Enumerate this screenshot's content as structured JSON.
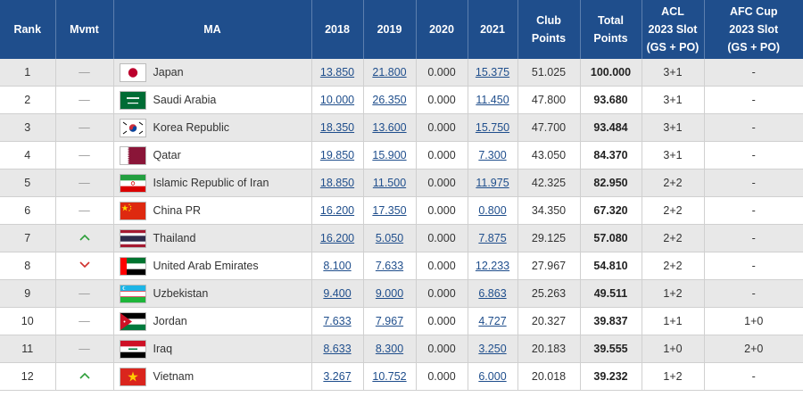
{
  "colors": {
    "header_bg": "#1f4e8c",
    "link": "#1f4e8c",
    "up": "#2e9e3a",
    "down": "#d0312d",
    "odd_row": "#e8e8e8",
    "even_row": "#ffffff"
  },
  "headers": {
    "rank": "Rank",
    "mvmt": "Mvmt",
    "ma": "MA",
    "y2018": "2018",
    "y2019": "2019",
    "y2020": "2020",
    "y2021": "2021",
    "club_line1": "Club",
    "club_line2": "Points",
    "total_line1": "Total",
    "total_line2": "Points",
    "acl_line1": "ACL",
    "acl_line2": "2023 Slot",
    "acl_line3": "(GS + PO)",
    "afc_line1": "AFC Cup",
    "afc_line2": "2023 Slot",
    "afc_line3": "(GS + PO)"
  },
  "rows": [
    {
      "rank": "1",
      "mvmt": "none",
      "mvmt_text": "—",
      "flag": "japan-flag",
      "country": "Japan",
      "y2018": "13.850",
      "y2019": "21.800",
      "y2020": "0.000",
      "y2021": "15.375",
      "club": "51.025",
      "total": "100.000",
      "acl": "3+1",
      "afc": "-"
    },
    {
      "rank": "2",
      "mvmt": "none",
      "mvmt_text": "—",
      "flag": "saudi-arabia-flag",
      "country": "Saudi Arabia",
      "y2018": "10.000",
      "y2019": "26.350",
      "y2020": "0.000",
      "y2021": "11.450",
      "club": "47.800",
      "total": "93.680",
      "acl": "3+1",
      "afc": "-"
    },
    {
      "rank": "3",
      "mvmt": "none",
      "mvmt_text": "—",
      "flag": "korea-republic-flag",
      "country": "Korea Republic",
      "y2018": "18.350",
      "y2019": "13.600",
      "y2020": "0.000",
      "y2021": "15.750",
      "club": "47.700",
      "total": "93.484",
      "acl": "3+1",
      "afc": "-"
    },
    {
      "rank": "4",
      "mvmt": "none",
      "mvmt_text": "—",
      "flag": "qatar-flag",
      "country": "Qatar",
      "y2018": "19.850",
      "y2019": "15.900",
      "y2020": "0.000",
      "y2021": "7.300",
      "club": "43.050",
      "total": "84.370",
      "acl": "3+1",
      "afc": "-"
    },
    {
      "rank": "5",
      "mvmt": "none",
      "mvmt_text": "—",
      "flag": "iran-flag",
      "country": "Islamic Republic of Iran",
      "y2018": "18.850",
      "y2019": "11.500",
      "y2020": "0.000",
      "y2021": "11.975",
      "club": "42.325",
      "total": "82.950",
      "acl": "2+2",
      "afc": "-"
    },
    {
      "rank": "6",
      "mvmt": "none",
      "mvmt_text": "—",
      "flag": "china-pr-flag",
      "country": "China PR",
      "y2018": "16.200",
      "y2019": "17.350",
      "y2020": "0.000",
      "y2021": "0.800",
      "club": "34.350",
      "total": "67.320",
      "acl": "2+2",
      "afc": "-"
    },
    {
      "rank": "7",
      "mvmt": "up",
      "mvmt_text": "",
      "flag": "thailand-flag",
      "country": "Thailand",
      "y2018": "16.200",
      "y2019": "5.050",
      "y2020": "0.000",
      "y2021": "7.875",
      "club": "29.125",
      "total": "57.080",
      "acl": "2+2",
      "afc": "-"
    },
    {
      "rank": "8",
      "mvmt": "down",
      "mvmt_text": "",
      "flag": "uae-flag",
      "country": "United Arab Emirates",
      "y2018": "8.100",
      "y2019": "7.633",
      "y2020": "0.000",
      "y2021": "12.233",
      "club": "27.967",
      "total": "54.810",
      "acl": "2+2",
      "afc": "-"
    },
    {
      "rank": "9",
      "mvmt": "none",
      "mvmt_text": "—",
      "flag": "uzbekistan-flag",
      "country": "Uzbekistan",
      "y2018": "9.400",
      "y2019": "9.000",
      "y2020": "0.000",
      "y2021": "6.863",
      "club": "25.263",
      "total": "49.511",
      "acl": "1+2",
      "afc": "-"
    },
    {
      "rank": "10",
      "mvmt": "none",
      "mvmt_text": "—",
      "flag": "jordan-flag",
      "country": "Jordan",
      "y2018": "7.633",
      "y2019": "7.967",
      "y2020": "0.000",
      "y2021": "4.727",
      "club": "20.327",
      "total": "39.837",
      "acl": "1+1",
      "afc": "1+0"
    },
    {
      "rank": "11",
      "mvmt": "none",
      "mvmt_text": "—",
      "flag": "iraq-flag",
      "country": "Iraq",
      "y2018": "8.633",
      "y2019": "8.300",
      "y2020": "0.000",
      "y2021": "3.250",
      "club": "20.183",
      "total": "39.555",
      "acl": "1+0",
      "afc": "2+0"
    },
    {
      "rank": "12",
      "mvmt": "up",
      "mvmt_text": "",
      "flag": "vietnam-flag",
      "country": "Vietnam",
      "y2018": "3.267",
      "y2019": "10.752",
      "y2020": "0.000",
      "y2021": "6.000",
      "club": "20.018",
      "total": "39.232",
      "acl": "1+2",
      "afc": "-"
    }
  ]
}
